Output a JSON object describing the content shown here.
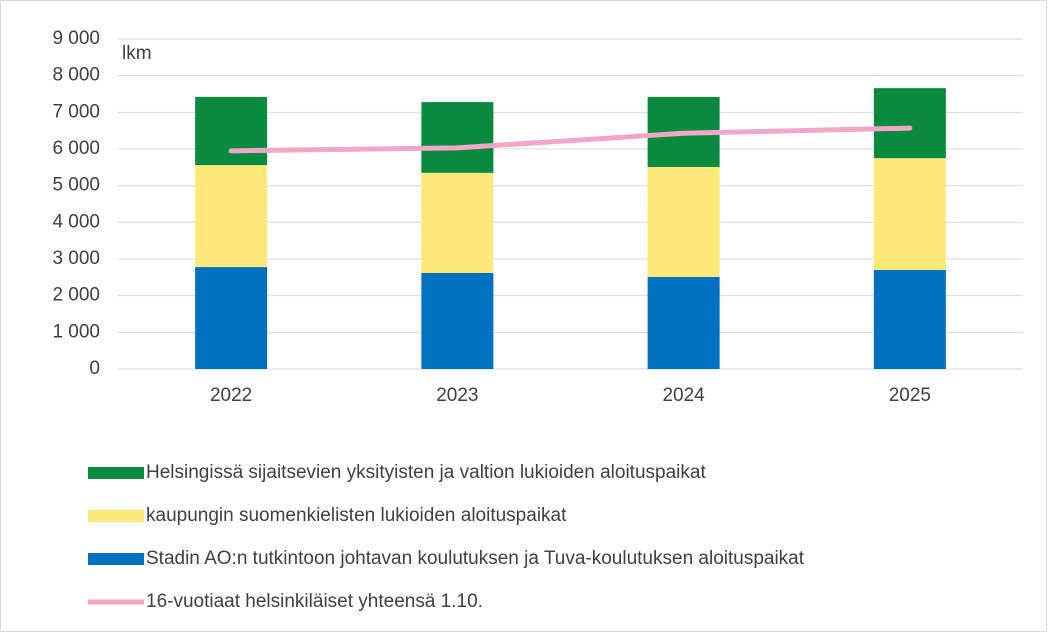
{
  "chart_data": {
    "type": "bar_line",
    "annotation": "lkm",
    "categories": [
      "2022",
      "2023",
      "2024",
      "2025"
    ],
    "series": [
      {
        "name": "Stadin AO:n tutkintoon johtavan koulutuksen ja Tuva-koulutuksen aloituspaikat",
        "color": "#0070c0",
        "type": "bar",
        "values": [
          2780,
          2620,
          2510,
          2700
        ]
      },
      {
        "name": "kaupungin suomenkielisten lukioiden aloituspaikat",
        "color": "#fde87a",
        "type": "bar",
        "values": [
          2780,
          2730,
          3000,
          3050
        ]
      },
      {
        "name": "Helsingissä sijaitsevien yksityisten ja valtion lukioiden aloituspaikat",
        "color": "#0a8a3e",
        "type": "bar",
        "values": [
          1860,
          1930,
          1910,
          1910
        ]
      },
      {
        "name": "16-vuotiaat helsinkiläiset yhteensä 1.10.",
        "color": "#f2a7c8",
        "type": "line",
        "values": [
          5950,
          6030,
          6430,
          6570
        ]
      }
    ],
    "ylim": [
      0,
      9000
    ],
    "yticks": [
      0,
      {
        "value": 1000,
        "label": "1 000"
      },
      {
        "value": 2000,
        "label": "2 000"
      },
      {
        "value": 3000,
        "label": "3 000"
      },
      {
        "value": 4000,
        "label": "4 000"
      },
      {
        "value": 5000,
        "label": "5 000"
      },
      {
        "value": 6000,
        "label": "6 000"
      },
      {
        "value": 7000,
        "label": "7 000"
      },
      {
        "value": 8000,
        "label": "8 000"
      },
      {
        "value": 9000,
        "label": "9 000"
      }
    ],
    "grid": true,
    "legend": "bottom"
  }
}
